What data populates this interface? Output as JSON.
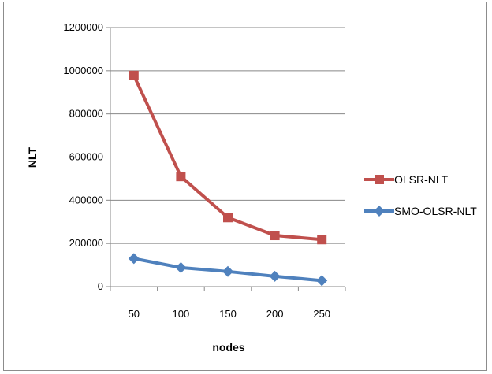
{
  "chart_data": {
    "type": "line",
    "categories": [
      "50",
      "100",
      "150",
      "200",
      "250"
    ],
    "xlabel": "nodes",
    "ylabel": "NLT",
    "ylim": [
      0,
      1200000
    ],
    "yticks": [
      "0",
      "200000",
      "400000",
      "600000",
      "800000",
      "1000000",
      "1200000"
    ],
    "grid": "horizontal",
    "legend_position": "right",
    "series": [
      {
        "name": "OLSR-NLT",
        "values": [
          978000,
          510000,
          320000,
          237000,
          218000
        ],
        "color": "#c0504d",
        "marker": "square"
      },
      {
        "name": "SMO-OLSR-NLT",
        "values": [
          130000,
          88000,
          70000,
          48000,
          28000
        ],
        "color": "#4f81bd",
        "marker": "diamond"
      }
    ]
  }
}
